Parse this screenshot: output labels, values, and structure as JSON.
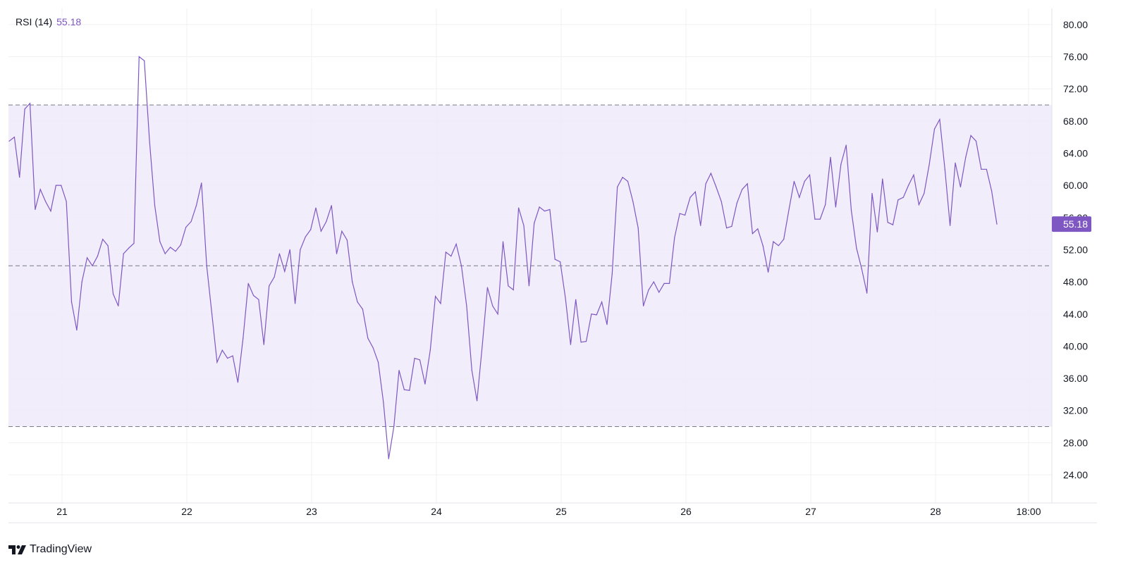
{
  "legend": {
    "label": "RSI (14)",
    "value": "55.18"
  },
  "branding": {
    "name": "TradingView"
  },
  "colors": {
    "line": "#7e57c2",
    "band_fill": "#efeaf9",
    "guide": "#787b86",
    "grid": "#f0f0f3",
    "label_bg": "#7e57c2"
  },
  "chart_data": {
    "type": "line",
    "series": [
      {
        "values": [
          65.5,
          66,
          61,
          69.5,
          70.2,
          57,
          59.5,
          58,
          56.8,
          60,
          60,
          58,
          45.5,
          42,
          48,
          51,
          50,
          51.2,
          53.3,
          52.5,
          46.5,
          45,
          51.5,
          52.2,
          52.8,
          76,
          75.5,
          65.5,
          57.5,
          53,
          51.5,
          52.3,
          51.8,
          52.6,
          54.8,
          55.5,
          57.5,
          60.3,
          50,
          44,
          38,
          39.5,
          38.5,
          38.8,
          35.5,
          41,
          47.8,
          46.3,
          45.8,
          40.2,
          47.5,
          48.6,
          51.5,
          49.3,
          52,
          45.3,
          52,
          53.6,
          54.5,
          57.2,
          54.3,
          55.5,
          57.5,
          51.5,
          54.3,
          53.2,
          48,
          45.5,
          44.6,
          41,
          39.8,
          38,
          33,
          26,
          30,
          37,
          34.6,
          34.5,
          38.5,
          38.3,
          35.3,
          39.5,
          46.2,
          45.3,
          51.7,
          51.2,
          52.7,
          50,
          45,
          37,
          33.2,
          40,
          47.3,
          45,
          44,
          53,
          47.5,
          47,
          57.2,
          55,
          47.5,
          55.3,
          57.3,
          56.8,
          57,
          50.8,
          50.5,
          46,
          40.2,
          45.8,
          40.5,
          40.6,
          44,
          43.9,
          45.5,
          42.7,
          49,
          59.8,
          61,
          60.5,
          58,
          54.7,
          45,
          47,
          48,
          46.7,
          47.8,
          47.8,
          53.5,
          56.5,
          56.3,
          58.5,
          59.2,
          55,
          60.2,
          61.5,
          59.8,
          58,
          54.7,
          54.9,
          57.8,
          59.5,
          60.2,
          54,
          54.6,
          52.5,
          49.2,
          53,
          52.5,
          53.3,
          57,
          60.5,
          58.5,
          60.5,
          61.3,
          55.8,
          55.8,
          57.6,
          63.5,
          57.3,
          62.6,
          65,
          56.9,
          52.2,
          49.6,
          46.6,
          59,
          54.2,
          60.8,
          55.4,
          55.1,
          58.2,
          58.5,
          60,
          61.3,
          57.6,
          59,
          62.6,
          67,
          68.2,
          62,
          55,
          62.8,
          59.8,
          63.5,
          66.2,
          65.5,
          62,
          62,
          59.3,
          55.18
        ],
        "color": "#7e57c2"
      }
    ],
    "x_ticks": [
      "21",
      "22",
      "23",
      "24",
      "25",
      "26",
      "27",
      "28",
      "18:00"
    ],
    "y_ticks": [
      "80.00",
      "76.00",
      "72.00",
      "68.00",
      "64.00",
      "60.00",
      "56.00",
      "52.00",
      "48.00",
      "44.00",
      "40.00",
      "36.00",
      "32.00",
      "28.00",
      "24.00"
    ],
    "ylim": [
      20.5,
      82
    ],
    "overbought": 70,
    "middle": 50,
    "oversold": 30,
    "current_value": 55.18,
    "grid": true,
    "legend_position": "top-left"
  }
}
